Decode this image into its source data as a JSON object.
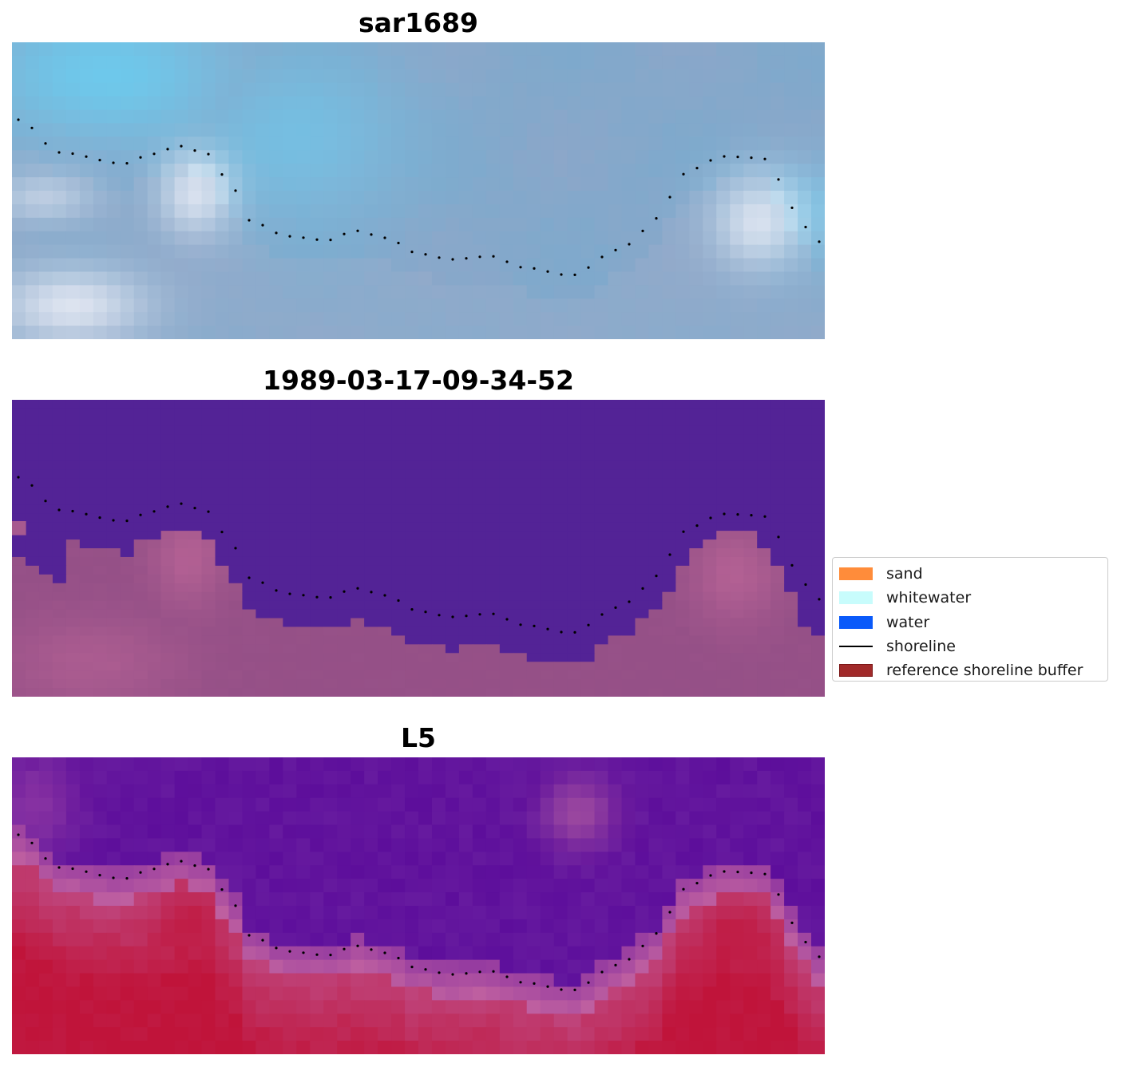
{
  "panels": [
    {
      "title": "sar1689",
      "style": "sar"
    },
    {
      "title": "1989-03-17-09-34-52",
      "style": "classified"
    },
    {
      "title": "L5",
      "style": "index"
    }
  ],
  "legend": {
    "items": [
      {
        "label": "sand",
        "kind": "patch",
        "color": "#ff8c3a"
      },
      {
        "label": "whitewater",
        "kind": "patch",
        "color": "#c8fcfc"
      },
      {
        "label": "water",
        "kind": "patch",
        "color": "#0a5afa"
      },
      {
        "label": "shoreline",
        "kind": "line",
        "color": "#000000"
      },
      {
        "label": "reference shoreline buffer",
        "kind": "patch",
        "color": "#a12a2a",
        "edge": "#7a1515"
      }
    ]
  },
  "colors": {
    "classified_water": "#532396",
    "classified_land": "#955087",
    "index_low": "#5a0a9a",
    "index_high": "#c0143a",
    "sar_bright": "#eef3fb",
    "sar_base": "#8fa6c8",
    "shoreline_dots": "#000000"
  }
}
